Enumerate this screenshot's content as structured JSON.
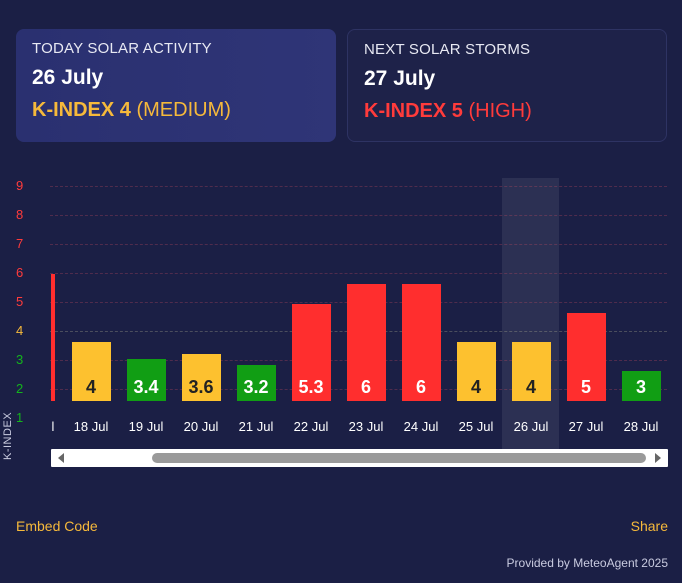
{
  "today": {
    "label": "TODAY SOLAR ACTIVITY",
    "date": "26 July",
    "kindex_bold": "K-INDEX 4",
    "kindex_level": "(MEDIUM)",
    "color": "#f6b93b"
  },
  "next": {
    "label": "NEXT SOLAR STORMS",
    "date": "27 July",
    "kindex_bold": "K-INDEX 5",
    "kindex_level": "(HIGH)",
    "color": "#ff3b3b"
  },
  "chart_data": {
    "type": "bar",
    "ylabel": "K-INDEX",
    "ylim": [
      1,
      9
    ],
    "yticks": [
      "9",
      "8",
      "7",
      "6",
      "5",
      "4",
      "3",
      "2",
      "1"
    ],
    "ytick_colors": [
      "#ff3b3b",
      "#ff3b3b",
      "#ff3b3b",
      "#ff3b3b",
      "#ff3b3b",
      "#f6b93b",
      "#13b51c",
      "#13b51c",
      "#13b51c"
    ],
    "categories": [
      "18 Jul",
      "19 Jul",
      "20 Jul",
      "21 Jul",
      "22 Jul",
      "23 Jul",
      "24 Jul",
      "25 Jul",
      "26 Jul",
      "27 Jul",
      "28 Jul"
    ],
    "values": [
      4,
      3.4,
      3.6,
      3.2,
      5.3,
      6,
      6,
      4,
      4,
      5,
      3
    ],
    "labels": [
      "4",
      "3.4",
      "3.6",
      "3.2",
      "5.3",
      "6",
      "6",
      "4",
      "4",
      "5",
      "3"
    ],
    "colors": [
      "#fdc12f",
      "#119e14",
      "#fdc12f",
      "#119e14",
      "#ff2e2e",
      "#ff2e2e",
      "#ff2e2e",
      "#fdc12f",
      "#fdc12f",
      "#ff2e2e",
      "#119e14"
    ],
    "label_colors": [
      "#222222",
      "#ffffff",
      "#222222",
      "#ffffff",
      "#ffffff",
      "#ffffff",
      "#ffffff",
      "#222222",
      "#222222",
      "#ffffff",
      "#ffffff"
    ],
    "highlight_category": "26 Jul",
    "partial_left_label": "l",
    "grid": true
  },
  "footer": {
    "embed": "Embed Code",
    "share": "Share",
    "provided": "Provided by MeteoAgent 2025"
  }
}
